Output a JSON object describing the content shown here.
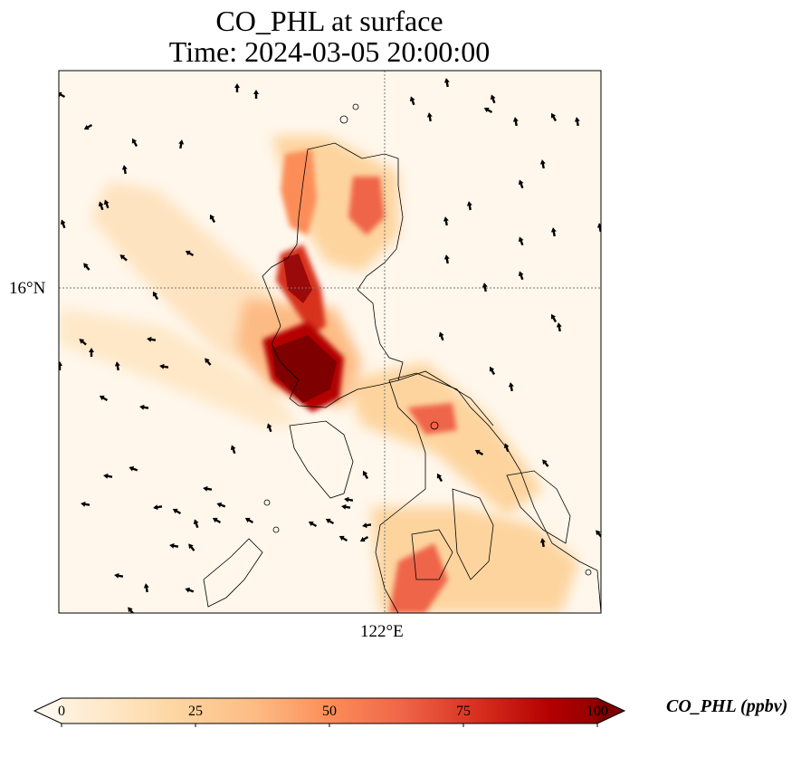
{
  "title": {
    "line1": "CO_PHL at surface",
    "line2": "Time: 2024-03-05 20:00:00"
  },
  "map": {
    "lat_label": "16°N",
    "lon_label": "122°E",
    "gridlines": true
  },
  "colorbar": {
    "label": "CO_PHL (ppbv)",
    "ticks": [
      "0",
      "25",
      "50",
      "75",
      "100"
    ],
    "min": 0,
    "max": 100,
    "extend": "both",
    "colormap": "OrRd",
    "colors": [
      "#fff7ec",
      "#fee8c8",
      "#fdd49e",
      "#fdbb84",
      "#fc8d59",
      "#ef6548",
      "#d7301f",
      "#b30000",
      "#7f0000"
    ]
  }
}
